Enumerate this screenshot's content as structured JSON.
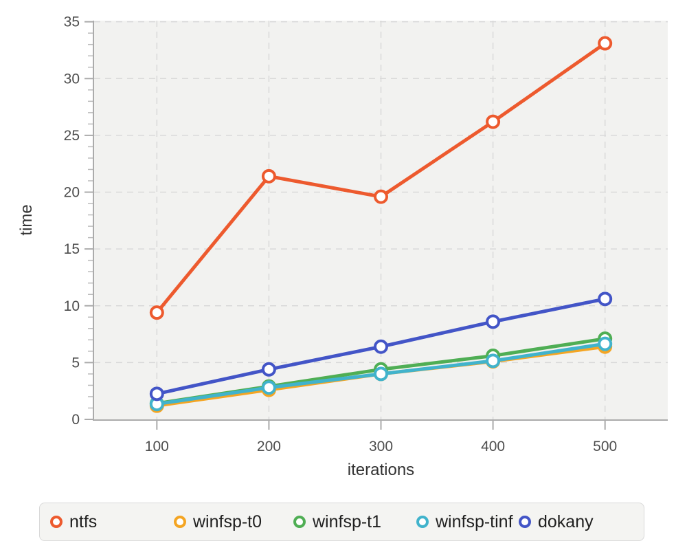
{
  "chart_data": {
    "type": "line",
    "x": [
      100,
      200,
      300,
      400,
      500
    ],
    "series": [
      {
        "name": "ntfs",
        "color": "#ed5a2e",
        "values": [
          9.4,
          21.4,
          19.6,
          26.2,
          33.1
        ]
      },
      {
        "name": "winfsp-t0",
        "color": "#f4a523",
        "values": [
          1.2,
          2.6,
          4.0,
          5.1,
          6.4
        ]
      },
      {
        "name": "winfsp-t1",
        "color": "#4fae54",
        "values": [
          1.4,
          2.9,
          4.4,
          5.6,
          7.1
        ]
      },
      {
        "name": "winfsp-tinf",
        "color": "#41b3cc",
        "values": [
          1.35,
          2.8,
          4.0,
          5.15,
          6.65
        ]
      },
      {
        "name": "dokany",
        "color": "#4355c7",
        "values": [
          2.25,
          4.4,
          6.4,
          8.6,
          10.6
        ]
      }
    ],
    "title": "",
    "xlabel": "iterations",
    "ylabel": "time",
    "xlim": [
      44,
      556
    ],
    "ylim": [
      0,
      35.1
    ],
    "x_ticks": [
      100,
      200,
      300,
      400,
      500
    ],
    "y_ticks": [
      0,
      5,
      10,
      15,
      20,
      25,
      30,
      35
    ],
    "y_minor_step": 1,
    "grid": true,
    "legend_position": "bottom"
  },
  "style": {
    "plot_background": "#f2f2f0",
    "grid_color": "#d9d9d9",
    "axis_color": "#ababab",
    "minor_tick_color": "#bbbbbb",
    "tick_label_color": "#4d4d4d",
    "marker_fill": "#ffffff"
  }
}
